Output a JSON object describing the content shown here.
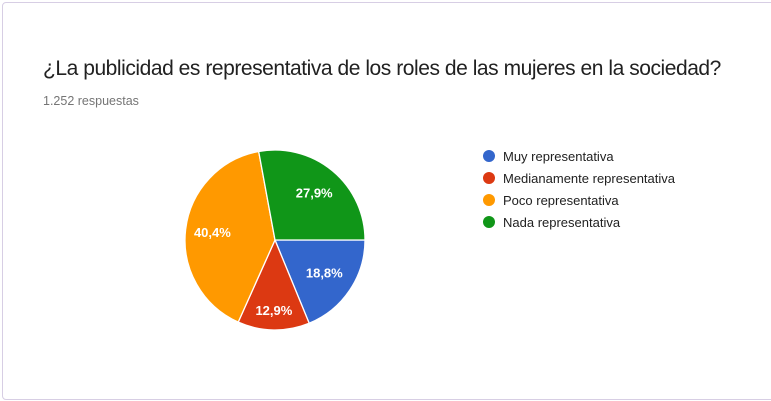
{
  "card": {
    "title": "¿La publicidad es representativa de los roles de las mujeres en la sociedad?",
    "responses": "1.252 respuestas"
  },
  "chart_data": {
    "type": "pie",
    "title": "¿La publicidad es representativa de los roles de las mujeres en la sociedad?",
    "subtitle": "1.252 respuestas",
    "labels": [
      "Muy representativa",
      "Medianamente representativa",
      "Poco representativa",
      "Nada representativa"
    ],
    "values": [
      18.8,
      12.9,
      40.4,
      27.9
    ],
    "display_labels": [
      "18,8%",
      "12,9%",
      "40,4%",
      "27,9%"
    ],
    "colors": [
      "#3366cc",
      "#dc3912",
      "#ff9900",
      "#109618"
    ],
    "start_angle_deg": 90,
    "label_radius": [
      0.66,
      0.78,
      0.7,
      0.68
    ],
    "legend_position": "right",
    "slice_border_color": "#ffffff"
  }
}
